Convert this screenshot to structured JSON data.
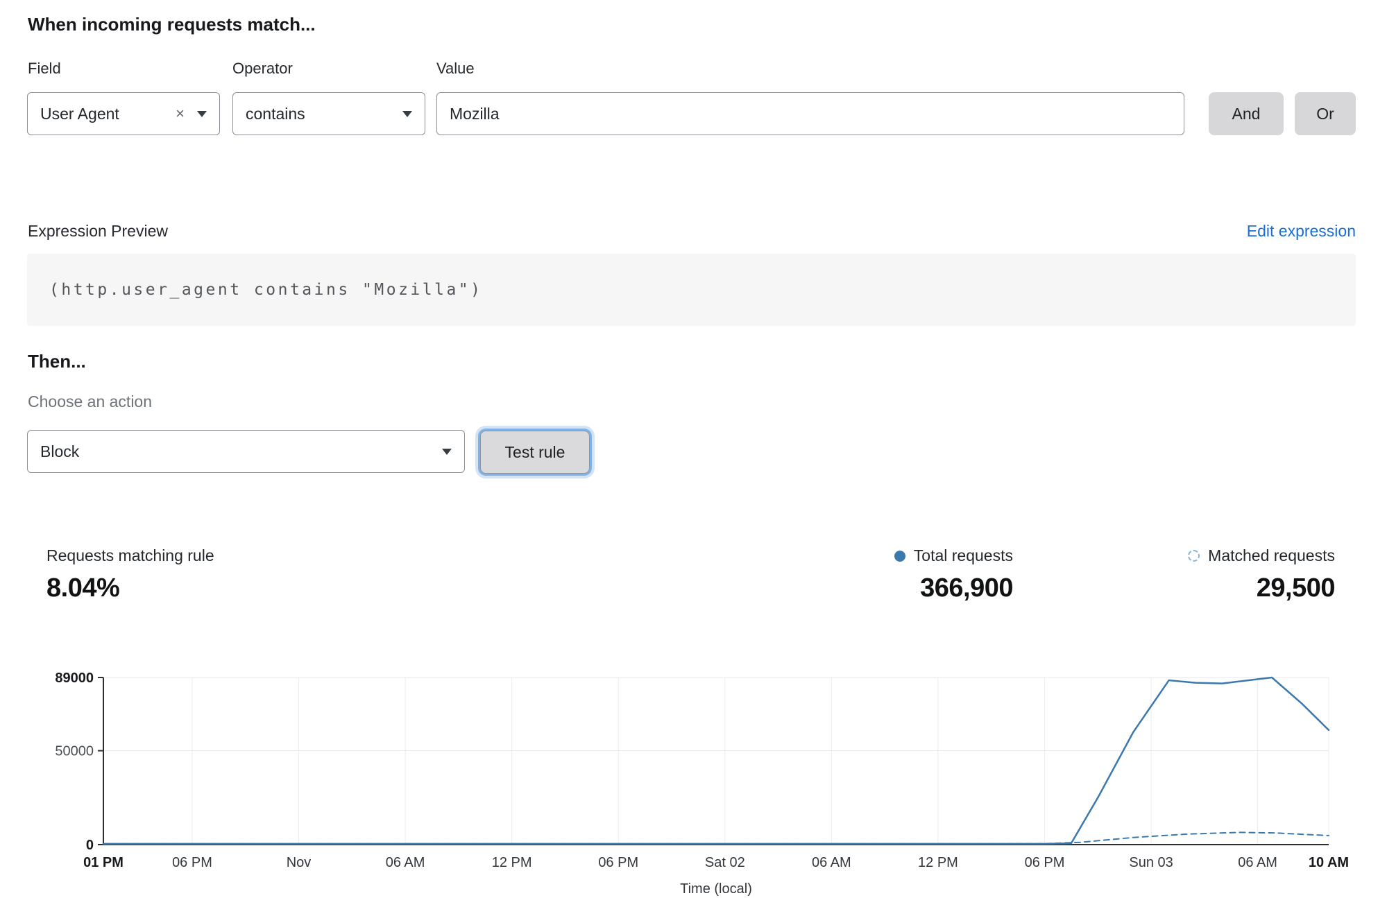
{
  "rule_builder": {
    "heading": "When incoming requests match...",
    "field": {
      "label": "Field",
      "value": "User Agent"
    },
    "operator": {
      "label": "Operator",
      "value": "contains"
    },
    "value": {
      "label": "Value",
      "value": "Mozilla"
    },
    "and_label": "And",
    "or_label": "Or"
  },
  "expression": {
    "label": "Expression Preview",
    "edit_link": "Edit expression",
    "code": "(http.user_agent contains \"Mozilla\")"
  },
  "action": {
    "heading": "Then...",
    "choose_label": "Choose an action",
    "selected": "Block",
    "test_button": "Test rule"
  },
  "stats": {
    "matching_label": "Requests matching rule",
    "matching_value": "8.04%",
    "total_label": "Total requests",
    "total_value": "366,900",
    "matched_label": "Matched requests",
    "matched_value": "29,500"
  },
  "colors": {
    "accent_blue": "#3b78ad",
    "link_blue": "#1a6fd4"
  },
  "chart_data": {
    "type": "line",
    "title": "",
    "xlabel": "Time (local)",
    "ylabel": "",
    "ylim": [
      0,
      89000
    ],
    "yticks": [
      0,
      50000,
      89000
    ],
    "x_range_hours": [
      0,
      69
    ],
    "xtick_hours": [
      0,
      5,
      11,
      17,
      23,
      29,
      35,
      41,
      47,
      53,
      59,
      65,
      69
    ],
    "xtick_labels": [
      "01 PM",
      "06 PM",
      "Nov",
      "06 AM",
      "12 PM",
      "06 PM",
      "Sat 02",
      "06 AM",
      "12 PM",
      "06 PM",
      "Sun 03",
      "06 AM",
      "10 AM"
    ],
    "grid": true,
    "legend_position": "top-right",
    "colors": {
      "line": "#3b78ad"
    },
    "series": [
      {
        "name": "Total requests",
        "style": "solid",
        "x": [
          0,
          5,
          11,
          17,
          23,
          29,
          35,
          41,
          47,
          53,
          54.5,
          56,
          58,
          60,
          61.5,
          63,
          65.8,
          67.5,
          69
        ],
        "values": [
          400,
          400,
          400,
          400,
          400,
          400,
          400,
          400,
          400,
          400,
          700,
          25000,
          60000,
          87500,
          86200,
          85800,
          89000,
          75000,
          61000
        ]
      },
      {
        "name": "Matched requests",
        "style": "dashed",
        "x": [
          0,
          10,
          20,
          30,
          40,
          50,
          53,
          55,
          58,
          61,
          64,
          66,
          69
        ],
        "values": [
          400,
          400,
          400,
          400,
          400,
          400,
          500,
          1200,
          3800,
          5600,
          6500,
          6200,
          4800
        ]
      }
    ]
  }
}
